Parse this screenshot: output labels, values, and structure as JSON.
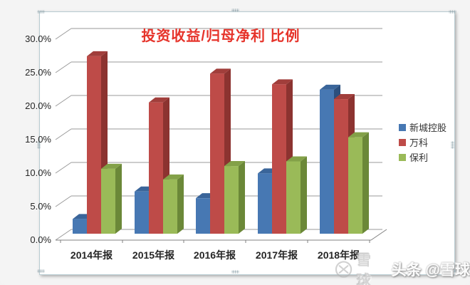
{
  "chart_data": {
    "type": "bar",
    "variant": "3d-clustered-column",
    "title": "投资收益/归母净利 比例",
    "title_color": "#e6342b",
    "categories": [
      "2014年报",
      "2015年报",
      "2016年报",
      "2017年报",
      "2018年报"
    ],
    "series": [
      {
        "name": "新城控股",
        "color": "#4778B3",
        "color_top": "#3A659A",
        "color_side": "#2B4F7D",
        "values": [
          2.2,
          6.3,
          5.3,
          9.0,
          21.5
        ]
      },
      {
        "name": "万科",
        "color": "#BE4B48",
        "color_top": "#A13E3B",
        "color_side": "#8C3330",
        "values": [
          26.5,
          19.6,
          23.9,
          22.3,
          20.1
        ]
      },
      {
        "name": "保利",
        "color": "#9ABA58",
        "color_top": "#83A148",
        "color_side": "#6B8838",
        "values": [
          9.7,
          8.1,
          10.1,
          10.8,
          14.4
        ]
      }
    ],
    "ylim": [
      0,
      30
    ],
    "ytick_step": 5,
    "yticks": [
      "0.0%",
      "5.0%",
      "10.0%",
      "15.0%",
      "20.0%",
      "25.0%",
      "30.0%"
    ],
    "grid": true,
    "grid_color": "#9a9a9a",
    "axis_color": "#808080",
    "legend_position": "right"
  },
  "watermark": {
    "brand": "雪球",
    "handle": "头条 @雪球"
  }
}
